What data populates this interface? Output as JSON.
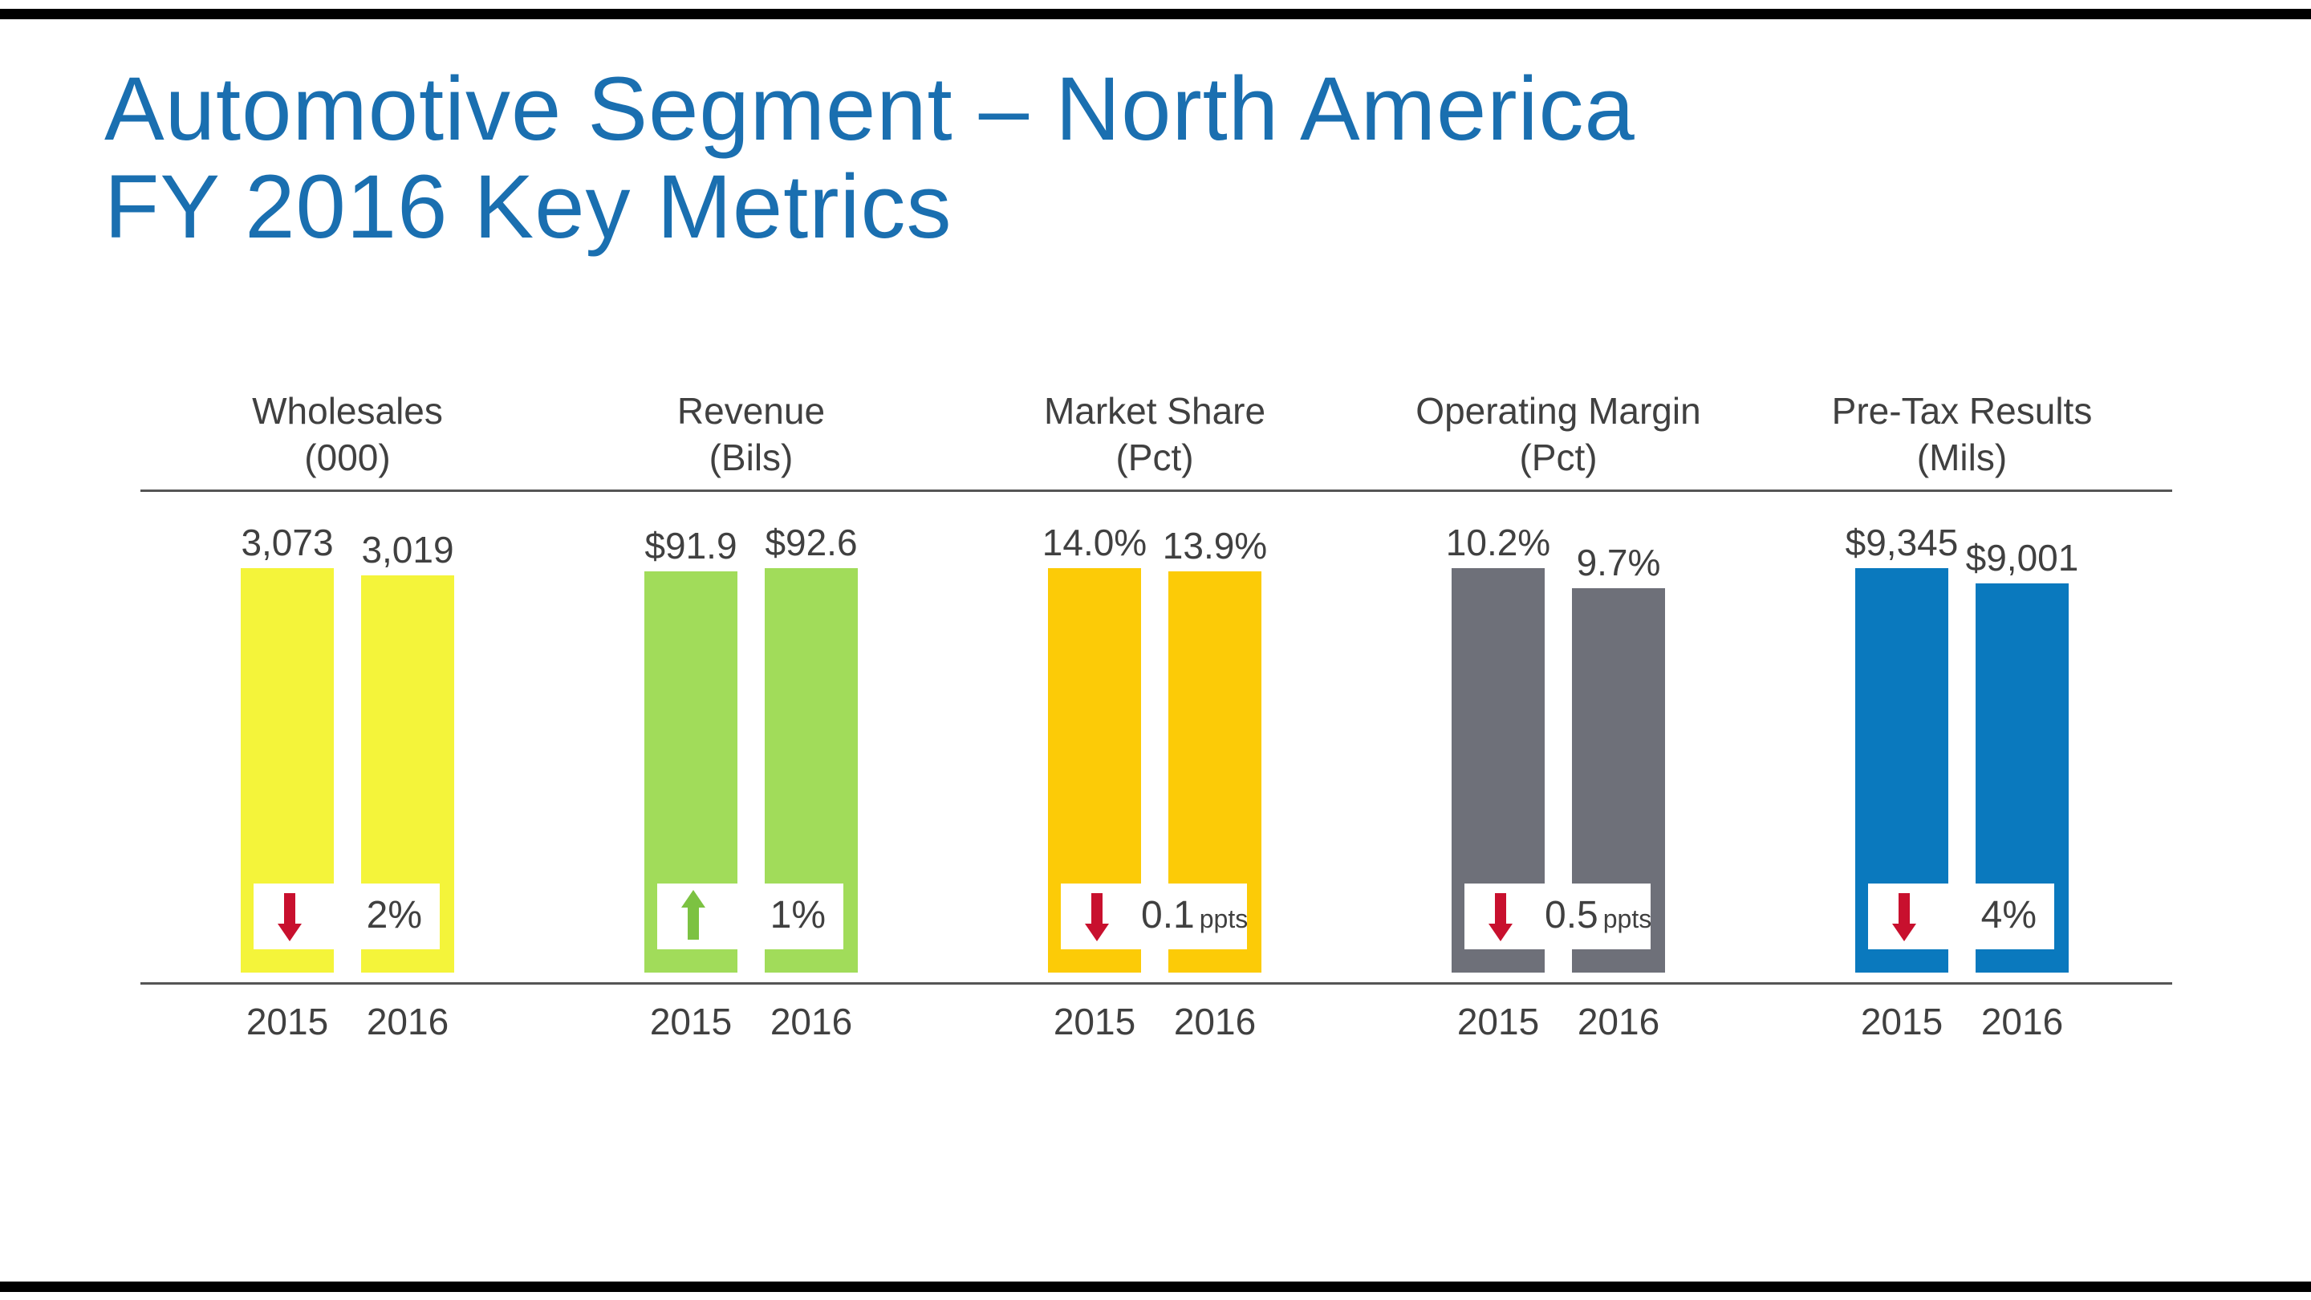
{
  "title": {
    "line1": "Automotive Segment – North America",
    "line2": "FY 2016 Key Metrics"
  },
  "colors": {
    "title": "#1a6fb0",
    "down_arrow": "#c8102e",
    "up_arrow": "#7cc242"
  },
  "chart_data": {
    "type": "bar",
    "categories": [
      "2015",
      "2016"
    ],
    "panels": [
      {
        "name": "Wholesales",
        "unit": "(000)",
        "color": "#f4f43a",
        "values": [
          3073,
          3019
        ],
        "labels": [
          "3,073",
          "3,019"
        ],
        "change": {
          "direction": "down",
          "text": "2%",
          "unit": ""
        }
      },
      {
        "name": "Revenue",
        "unit": "(Bils)",
        "color": "#a1dc5a",
        "values": [
          91.9,
          92.6
        ],
        "labels": [
          "$91.9",
          "$92.6"
        ],
        "change": {
          "direction": "up",
          "text": "1%",
          "unit": ""
        }
      },
      {
        "name": "Market Share",
        "unit": "(Pct)",
        "color": "#fccb07",
        "values": [
          14.0,
          13.9
        ],
        "labels": [
          "14.0%",
          "13.9%"
        ],
        "change": {
          "direction": "down",
          "text": "0.1",
          "unit": "ppts"
        }
      },
      {
        "name": "Operating Margin",
        "unit": "(Pct)",
        "color": "#6e7079",
        "values": [
          10.2,
          9.7
        ],
        "labels": [
          "10.2%",
          "9.7%"
        ],
        "change": {
          "direction": "down",
          "text": "0.5",
          "unit": "ppts"
        }
      },
      {
        "name": "Pre-Tax Results",
        "unit": "(Mils)",
        "color": "#0a79be",
        "values": [
          9345,
          9001
        ],
        "labels": [
          "$9,345",
          "$9,001"
        ],
        "change": {
          "direction": "down",
          "text": "4%",
          "unit": ""
        }
      }
    ]
  }
}
